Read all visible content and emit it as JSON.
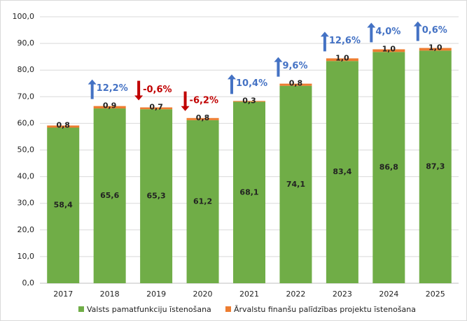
{
  "chart_data": {
    "type": "stacked_bar",
    "categories": [
      "2017",
      "2018",
      "2019",
      "2020",
      "2021",
      "2022",
      "2023",
      "2024",
      "2025"
    ],
    "series": [
      {
        "name": "Valsts pamatfunkciju īstenošana",
        "color": "#70ad47",
        "values": [
          58.4,
          65.6,
          65.3,
          61.2,
          68.1,
          74.1,
          83.4,
          86.8,
          87.3
        ],
        "value_labels": [
          "58,4",
          "65,6",
          "65,3",
          "61,2",
          "68,1",
          "74,1",
          "83,4",
          "86,8",
          "87,3"
        ]
      },
      {
        "name": "Ārvalstu finanšu palīdzības projektu īstenošana",
        "color": "#ed7d31",
        "values": [
          0.8,
          0.9,
          0.7,
          0.8,
          0.3,
          0.8,
          1.0,
          1.0,
          1.0
        ],
        "value_labels": [
          "0,8",
          "0,9",
          "0,7",
          "0,8",
          "0,3",
          "0,8",
          "1,0",
          "1,0",
          "1,0"
        ]
      }
    ],
    "annotations": [
      null,
      {
        "text": "12,2%",
        "direction": "up",
        "color": "#4472c4"
      },
      {
        "text": "-0,6%",
        "direction": "down",
        "color": "#c00000"
      },
      {
        "text": "-6,2%",
        "direction": "down",
        "color": "#c00000"
      },
      {
        "text": "10,4%",
        "direction": "up",
        "color": "#4472c4"
      },
      {
        "text": "9,6%",
        "direction": "up",
        "color": "#4472c4"
      },
      {
        "text": "12,6%",
        "direction": "up",
        "color": "#4472c4"
      },
      {
        "text": "4,0%",
        "direction": "up",
        "color": "#4472c4"
      },
      {
        "text": "0,6%",
        "direction": "up",
        "color": "#4472c4"
      }
    ],
    "ylim": [
      0,
      100
    ],
    "yticks": [
      {
        "value": 0,
        "label": "0,0"
      },
      {
        "value": 10,
        "label": "10,0"
      },
      {
        "value": 20,
        "label": "20,0"
      },
      {
        "value": 30,
        "label": "30,0"
      },
      {
        "value": 40,
        "label": "40,0"
      },
      {
        "value": 50,
        "label": "50,0"
      },
      {
        "value": 60,
        "label": "60,0"
      },
      {
        "value": 70,
        "label": "70,0"
      },
      {
        "value": 80,
        "label": "80,0"
      },
      {
        "value": 90,
        "label": "90,0"
      },
      {
        "value": 100,
        "label": "100,0"
      }
    ],
    "grid": true,
    "legend": "bottom"
  }
}
